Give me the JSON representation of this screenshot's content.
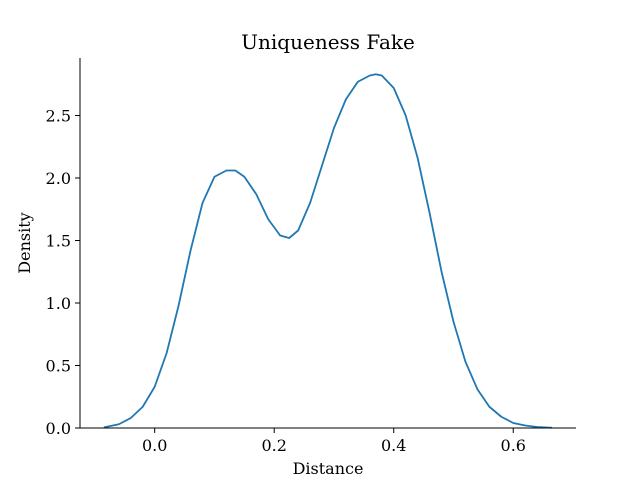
{
  "chart_data": {
    "type": "line",
    "title": "Uniqueness Fake",
    "xlabel": "Distance",
    "ylabel": "Density",
    "xlim": [
      -0.125,
      0.705
    ],
    "ylim": [
      0,
      2.96
    ],
    "xticks": [
      0.0,
      0.2,
      0.4,
      0.6
    ],
    "xtick_labels": [
      "0.0",
      "0.2",
      "0.4",
      "0.6"
    ],
    "yticks": [
      0.0,
      0.5,
      1.0,
      1.5,
      2.0,
      2.5
    ],
    "ytick_labels": [
      "0.0",
      "0.5",
      "1.0",
      "1.5",
      "2.0",
      "2.5"
    ],
    "grid": false,
    "color": "#1f77b4",
    "series": [
      {
        "x": [
          -0.085,
          -0.06,
          -0.04,
          -0.02,
          0.0,
          0.02,
          0.04,
          0.06,
          0.08,
          0.1,
          0.12,
          0.135,
          0.15,
          0.17,
          0.19,
          0.21,
          0.225,
          0.24,
          0.26,
          0.28,
          0.3,
          0.32,
          0.34,
          0.36,
          0.37,
          0.38,
          0.4,
          0.42,
          0.44,
          0.46,
          0.48,
          0.5,
          0.52,
          0.54,
          0.56,
          0.58,
          0.6,
          0.62,
          0.64,
          0.665
        ],
        "y": [
          0.005,
          0.03,
          0.08,
          0.17,
          0.33,
          0.6,
          0.98,
          1.42,
          1.8,
          2.01,
          2.06,
          2.06,
          2.01,
          1.87,
          1.67,
          1.54,
          1.52,
          1.58,
          1.8,
          2.1,
          2.4,
          2.63,
          2.77,
          2.82,
          2.83,
          2.82,
          2.72,
          2.5,
          2.16,
          1.72,
          1.25,
          0.85,
          0.53,
          0.31,
          0.17,
          0.09,
          0.04,
          0.02,
          0.008,
          0.002
        ]
      }
    ]
  }
}
